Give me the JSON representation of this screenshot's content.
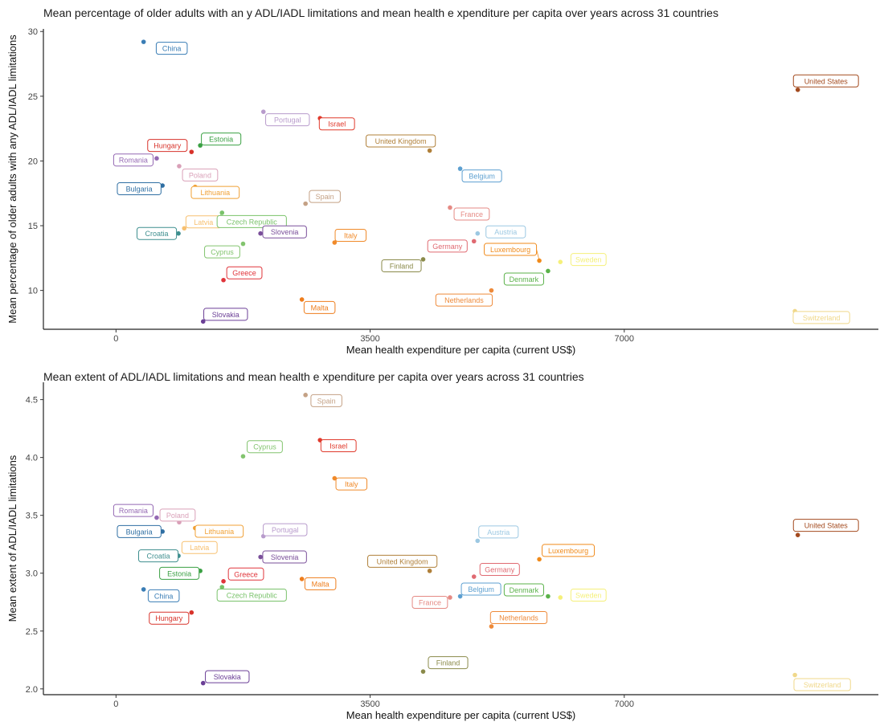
{
  "colors": {
    "China": "#3a7db5",
    "Hungary": "#d8332b",
    "Estonia": "#3aa043",
    "Romania": "#9468b3",
    "Poland": "#d9a0b8",
    "Bulgaria": "#2f6fa3",
    "Lithuania": "#f0a035",
    "Latvia": "#f7c070",
    "Croatia": "#3e8f8f",
    "Czech Republic": "#79c26a",
    "Cyprus": "#82c46e",
    "Greece": "#e0343a",
    "Slovakia": "#6b3f96",
    "Portugal": "#b89bcc",
    "Slovenia": "#7a4f9a",
    "Israel": "#e03a2c",
    "Spain": "#c4a185",
    "Malta": "#ee7d1c",
    "Italy": "#f08a2a",
    "United Kingdom": "#b0803a",
    "Finland": "#8a8a4a",
    "France": "#e58a84",
    "Germany": "#e06a72",
    "Belgium": "#5c9fd0",
    "Austria": "#9cc8e2",
    "Netherlands": "#ee8a3a",
    "Luxembourg": "#f08a1a",
    "Denmark": "#5bb24a",
    "Sweden": "#f5f07a",
    "Switzerland": "#f0d88a",
    "United States": "#a34a1e"
  },
  "chart_data": [
    {
      "type": "scatter",
      "title": "Mean percentage of older adults with an y ADL/IADL limitations and mean health e xpenditure per capita over years across 31 countries",
      "xlabel": "Mean health expenditure per capita (current US$)",
      "ylabel": "Mean percentage of older adults with any ADL/IADL limitations",
      "xlim": [
        -1000,
        10500
      ],
      "ylim": [
        7.0,
        30.2
      ],
      "xticks": [
        0,
        3500,
        7000
      ],
      "yticks": [
        10,
        15,
        20,
        25,
        30
      ],
      "grid": false,
      "points": [
        {
          "label": "China",
          "x": 380,
          "y": 29.2
        },
        {
          "label": "Hungary",
          "x": 1040,
          "y": 20.7
        },
        {
          "label": "Estonia",
          "x": 1160,
          "y": 21.2
        },
        {
          "label": "Romania",
          "x": 560,
          "y": 20.2
        },
        {
          "label": "Poland",
          "x": 870,
          "y": 19.6
        },
        {
          "label": "Bulgaria",
          "x": 640,
          "y": 18.1
        },
        {
          "label": "Lithuania",
          "x": 1090,
          "y": 18.0
        },
        {
          "label": "Latvia",
          "x": 940,
          "y": 14.8
        },
        {
          "label": "Croatia",
          "x": 860,
          "y": 14.4
        },
        {
          "label": "Czech Republic",
          "x": 1460,
          "y": 16.0
        },
        {
          "label": "Cyprus",
          "x": 1750,
          "y": 13.6
        },
        {
          "label": "Greece",
          "x": 1480,
          "y": 10.8
        },
        {
          "label": "Slovakia",
          "x": 1200,
          "y": 7.6
        },
        {
          "label": "Portugal",
          "x": 2030,
          "y": 23.8
        },
        {
          "label": "Slovenia",
          "x": 1990,
          "y": 14.4
        },
        {
          "label": "Israel",
          "x": 2810,
          "y": 23.3
        },
        {
          "label": "Spain",
          "x": 2610,
          "y": 16.7
        },
        {
          "label": "Malta",
          "x": 2560,
          "y": 9.3
        },
        {
          "label": "Italy",
          "x": 3010,
          "y": 13.7
        },
        {
          "label": "United Kingdom",
          "x": 4320,
          "y": 20.8
        },
        {
          "label": "Finland",
          "x": 4230,
          "y": 12.4
        },
        {
          "label": "France",
          "x": 4600,
          "y": 16.4
        },
        {
          "label": "Germany",
          "x": 4930,
          "y": 13.8
        },
        {
          "label": "Belgium",
          "x": 4740,
          "y": 19.4
        },
        {
          "label": "Austria",
          "x": 4980,
          "y": 14.4
        },
        {
          "label": "Netherlands",
          "x": 5170,
          "y": 10.0
        },
        {
          "label": "Luxembourg",
          "x": 5830,
          "y": 12.3
        },
        {
          "label": "Denmark",
          "x": 5950,
          "y": 11.5
        },
        {
          "label": "Sweden",
          "x": 6120,
          "y": 12.2
        },
        {
          "label": "Switzerland",
          "x": 9350,
          "y": 8.4
        },
        {
          "label": "United States",
          "x": 9390,
          "y": 25.5
        }
      ]
    },
    {
      "type": "scatter",
      "title": "Mean extent of ADL/IADL limitations and mean health e xpenditure per capita over years across 31 countries",
      "xlabel": "Mean health expenditure per capita (current US$)",
      "ylabel": "Mean extent of ADL/IADL limitations",
      "xlim": [
        -1000,
        10500
      ],
      "ylim": [
        1.95,
        4.65
      ],
      "xticks": [
        0,
        3500,
        7000
      ],
      "yticks": [
        2.0,
        2.5,
        3.0,
        3.5,
        4.0,
        4.5
      ],
      "grid": false,
      "points": [
        {
          "label": "Spain",
          "x": 2610,
          "y": 4.54
        },
        {
          "label": "Israel",
          "x": 2810,
          "y": 4.15
        },
        {
          "label": "Cyprus",
          "x": 1750,
          "y": 4.01
        },
        {
          "label": "Italy",
          "x": 3010,
          "y": 3.82
        },
        {
          "label": "Romania",
          "x": 560,
          "y": 3.48
        },
        {
          "label": "Poland",
          "x": 870,
          "y": 3.44
        },
        {
          "label": "Bulgaria",
          "x": 640,
          "y": 3.36
        },
        {
          "label": "Lithuania",
          "x": 1090,
          "y": 3.39
        },
        {
          "label": "Portugal",
          "x": 2030,
          "y": 3.32
        },
        {
          "label": "Croatia",
          "x": 860,
          "y": 3.15
        },
        {
          "label": "Latvia",
          "x": 940,
          "y": 3.25
        },
        {
          "label": "Slovenia",
          "x": 1990,
          "y": 3.14
        },
        {
          "label": "Estonia",
          "x": 1160,
          "y": 3.02
        },
        {
          "label": "Greece",
          "x": 1480,
          "y": 2.93
        },
        {
          "label": "Czech Republic",
          "x": 1460,
          "y": 2.88
        },
        {
          "label": "Malta",
          "x": 2560,
          "y": 2.95
        },
        {
          "label": "China",
          "x": 380,
          "y": 2.86
        },
        {
          "label": "Hungary",
          "x": 1040,
          "y": 2.66
        },
        {
          "label": "Slovakia",
          "x": 1200,
          "y": 2.05
        },
        {
          "label": "United Kingdom",
          "x": 4320,
          "y": 3.02
        },
        {
          "label": "Austria",
          "x": 4980,
          "y": 3.28
        },
        {
          "label": "Germany",
          "x": 4930,
          "y": 2.97
        },
        {
          "label": "Belgium",
          "x": 4740,
          "y": 2.8
        },
        {
          "label": "France",
          "x": 4600,
          "y": 2.79
        },
        {
          "label": "Luxembourg",
          "x": 5830,
          "y": 3.12
        },
        {
          "label": "Denmark",
          "x": 5950,
          "y": 2.8
        },
        {
          "label": "Sweden",
          "x": 6120,
          "y": 2.79
        },
        {
          "label": "Netherlands",
          "x": 5170,
          "y": 2.54
        },
        {
          "label": "Finland",
          "x": 4230,
          "y": 2.15
        },
        {
          "label": "Switzerland",
          "x": 9350,
          "y": 2.12
        },
        {
          "label": "United States",
          "x": 9390,
          "y": 3.33
        }
      ]
    }
  ]
}
